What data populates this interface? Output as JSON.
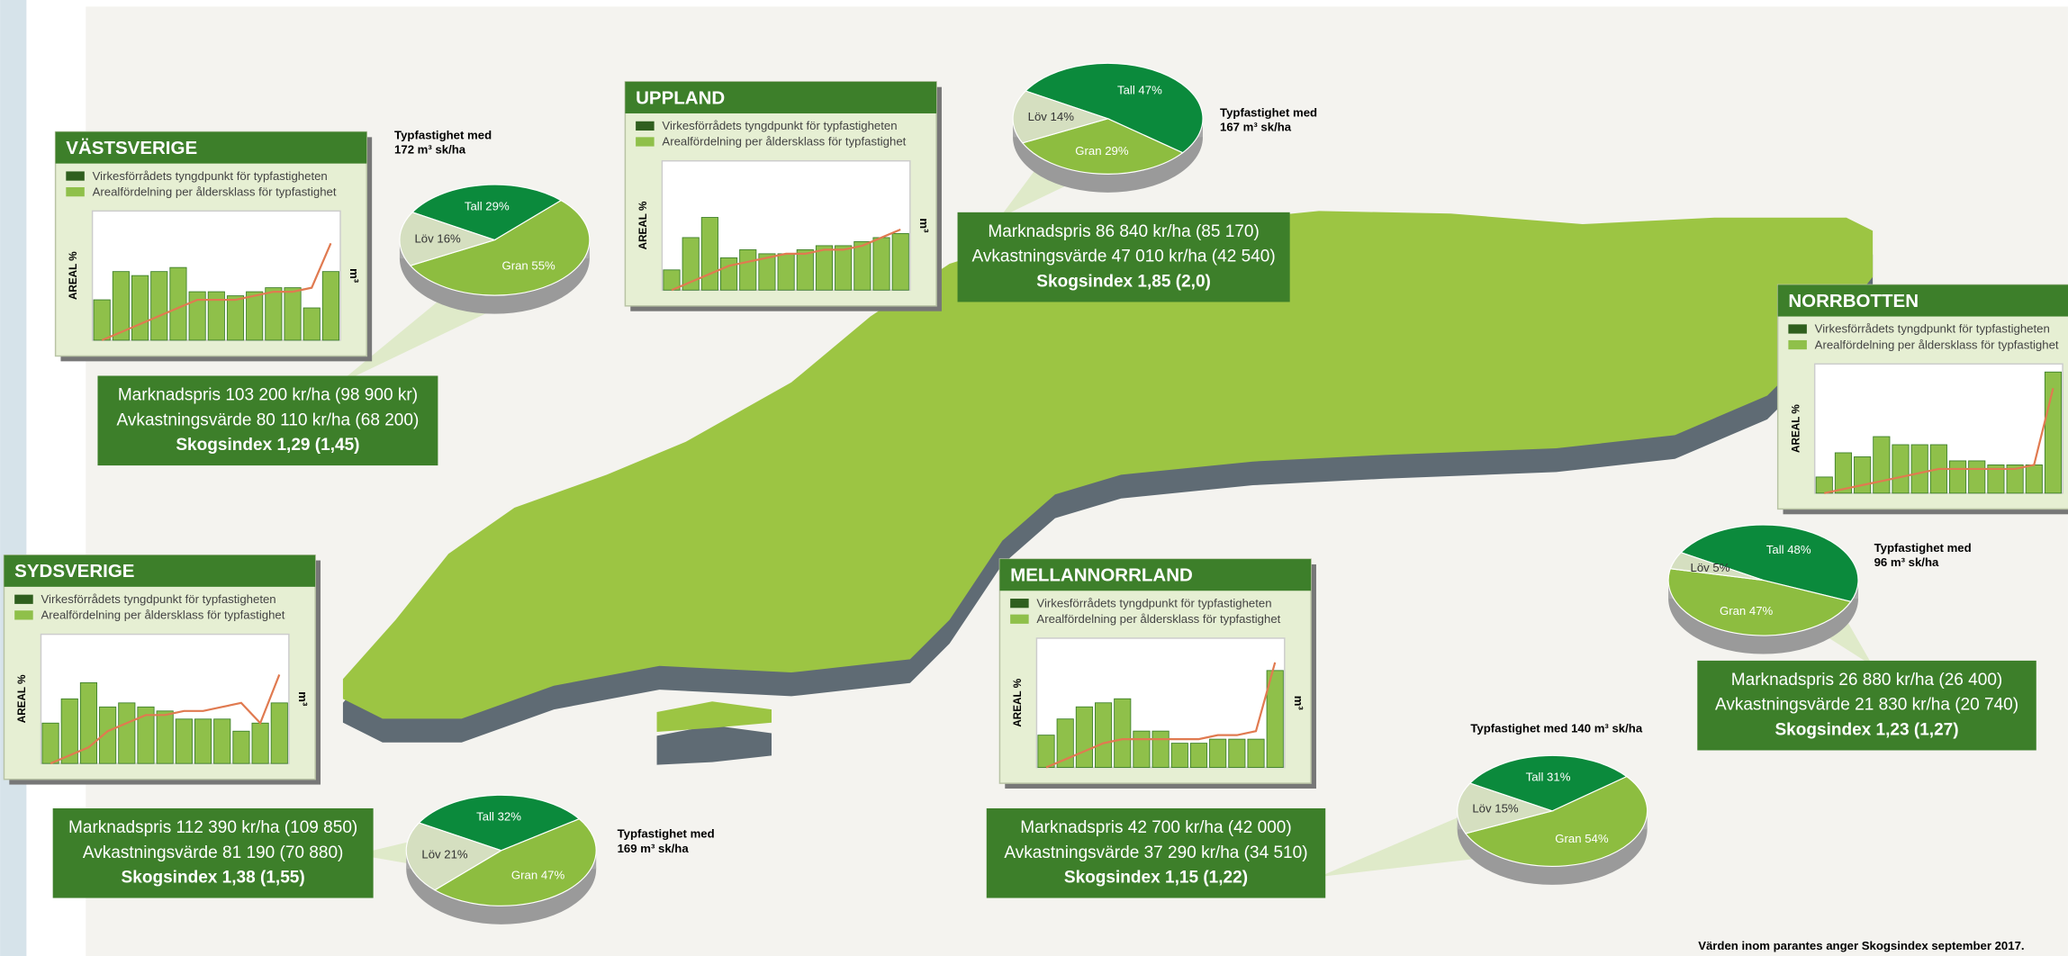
{
  "regions": [
    {
      "title": "VÄSTSVERIGE",
      "legend": [
        "Virkesförrådets tyngdpunkt för typfastigheten",
        "Arealfördelning per åldersklass för typfastighet"
      ],
      "y_label": "AREAL %",
      "y2_label": "m³",
      "ylim": [
        0,
        16
      ],
      "bars": [
        5,
        8.5,
        8,
        8.5,
        9,
        6,
        6,
        5.5,
        6,
        6.5,
        6.5,
        4,
        8.5
      ],
      "line": [
        0,
        1,
        2,
        3,
        4,
        5,
        5,
        5,
        5.5,
        6,
        6,
        6.5,
        12
      ],
      "typ": [
        "Typfastighet med",
        "172 m³ sk/ha"
      ],
      "pie": [
        {
          "name": "Tall",
          "value": 29,
          "label": "Tall 29%",
          "color": "#0b8a3c"
        },
        {
          "name": "Gran",
          "value": 55,
          "label": "Gran 55%",
          "color": "#8dbd40"
        },
        {
          "name": "Löv",
          "value": 16,
          "label": "Löv 16%",
          "color": "#d5dfc0"
        }
      ],
      "info": [
        "Marknadspris 103 200 kr/ha (98 900 kr)",
        "Avkastningsvärde 80 110 kr/ha (68 200)",
        "Skogsindex 1,29 (1,45)"
      ]
    },
    {
      "title": "UPPLAND",
      "legend": [
        "Virkesförrådets tyngdpunkt för typfastigheten",
        "Arealfördelning per åldersklass för typfastighet"
      ],
      "y_label": "AREAL %",
      "y2_label": "m³",
      "ylim": [
        0,
        16
      ],
      "bars": [
        2.5,
        6.5,
        9,
        4,
        5,
        4.5,
        4.5,
        5,
        5.5,
        5.5,
        6,
        6.5,
        7
      ],
      "line": [
        0,
        1,
        2,
        3,
        3.5,
        4,
        4.5,
        4.5,
        5,
        5,
        5.5,
        6.5,
        7.5
      ],
      "typ": [
        "Typfastighet med",
        "167 m³ sk/ha"
      ],
      "pie": [
        {
          "name": "Tall",
          "value": 47,
          "label": "Tall 47%",
          "color": "#0b8a3c"
        },
        {
          "name": "Gran",
          "value": 29,
          "label": "Gran 29%",
          "color": "#8dbd40"
        },
        {
          "name": "Löv",
          "value": 14,
          "label": "Löv 14%",
          "color": "#d5dfc0"
        }
      ],
      "info": [
        "Marknadspris 86 840 kr/ha (85 170)",
        "Avkastningsvärde 47 010 kr/ha (42 540)",
        "Skogsindex 1,85 (2,0)"
      ]
    },
    {
      "title": "NORRBOTTEN",
      "legend": [
        "Virkesförrådets tyngdpunkt för typfastigheten",
        "Arealfördelning per åldersklass för typfastighet"
      ],
      "y_label": "AREAL %",
      "y2_label": "m³",
      "ylim": [
        0,
        16
      ],
      "bars": [
        2,
        5,
        4.5,
        7,
        6,
        6,
        6,
        4,
        4,
        3.5,
        3.5,
        3.5,
        15
      ],
      "line": [
        0,
        0.5,
        1,
        1.5,
        2,
        2.5,
        3,
        3,
        3,
        3,
        3,
        3.5,
        13
      ],
      "typ": [
        "Typfastighet med",
        "96 m³ sk/ha"
      ],
      "pie": [
        {
          "name": "Tall",
          "value": 48,
          "label": "Tall 48%",
          "color": "#0b8a3c"
        },
        {
          "name": "Gran",
          "value": 47,
          "label": "Gran 47%",
          "color": "#8dbd40"
        },
        {
          "name": "Löv",
          "value": 5,
          "label": "Löv 5%",
          "color": "#d5dfc0"
        }
      ],
      "info": [
        "Marknadspris 26 880 kr/ha (26 400)",
        "Avkastningsvärde 21 830 kr/ha (20 740)",
        "Skogsindex 1,23 (1,27)"
      ]
    },
    {
      "title": "SYDSVERIGE",
      "legend": [
        "Virkesförrådets tyngdpunkt för typfastigheten",
        "Arealfördelning per åldersklass för typfastighet"
      ],
      "y_label": "AREAL %",
      "y2_label": "m³",
      "ylim": [
        0,
        16
      ],
      "bars": [
        5,
        8,
        10,
        7,
        7.5,
        7,
        6.5,
        5.5,
        5.5,
        5.5,
        4,
        5,
        7.5
      ],
      "line": [
        0,
        1,
        2,
        4,
        5,
        6,
        6,
        6.5,
        6.5,
        7,
        7.5,
        5,
        11
      ],
      "typ": [
        "Typfastighet med",
        "169 m³ sk/ha"
      ],
      "pie": [
        {
          "name": "Tall",
          "value": 32,
          "label": "Tall 32%",
          "color": "#0b8a3c"
        },
        {
          "name": "Gran",
          "value": 47,
          "label": "Gran 47%",
          "color": "#8dbd40"
        },
        {
          "name": "Löv",
          "value": 21,
          "label": "Löv 21%",
          "color": "#d5dfc0"
        }
      ],
      "info": [
        "Marknadspris 112 390 kr/ha (109 850)",
        "Avkastningsvärde 81 190 (70 880)",
        "Skogsindex 1,38 (1,55)"
      ]
    },
    {
      "title": "MELLANNORRLAND",
      "legend": [
        "Virkesförrådets tyngdpunkt för typfastigheten",
        "Arealfördelning per åldersklass för typfastighet"
      ],
      "y_label": "AREAL %",
      "y2_label": "m³",
      "ylim": [
        0,
        16
      ],
      "bars": [
        4,
        6,
        7.5,
        8,
        8.5,
        4.5,
        4.5,
        3,
        3,
        3.5,
        3.5,
        3.5,
        12
      ],
      "line": [
        0,
        1,
        2,
        3,
        3.5,
        3.5,
        3.5,
        3.5,
        3.5,
        4,
        4,
        4.5,
        13
      ],
      "typ": [
        "Typfastighet med 140 m³ sk/ha"
      ],
      "pie": [
        {
          "name": "Tall",
          "value": 31,
          "label": "Tall 31%",
          "color": "#0b8a3c"
        },
        {
          "name": "Gran",
          "value": 54,
          "label": "Gran 54%",
          "color": "#8dbd40"
        },
        {
          "name": "Löv",
          "value": 15,
          "label": "Löv 15%",
          "color": "#d5dfc0"
        }
      ],
      "info": [
        "Marknadspris 42 700 kr/ha (42 000)",
        "Avkastningsvärde 37 290 kr/ha (34 510)",
        "Skogsindex 1,15 (1,22)"
      ]
    }
  ],
  "footnote": "Värden inom parantes anger Skogsindex september 2017."
}
